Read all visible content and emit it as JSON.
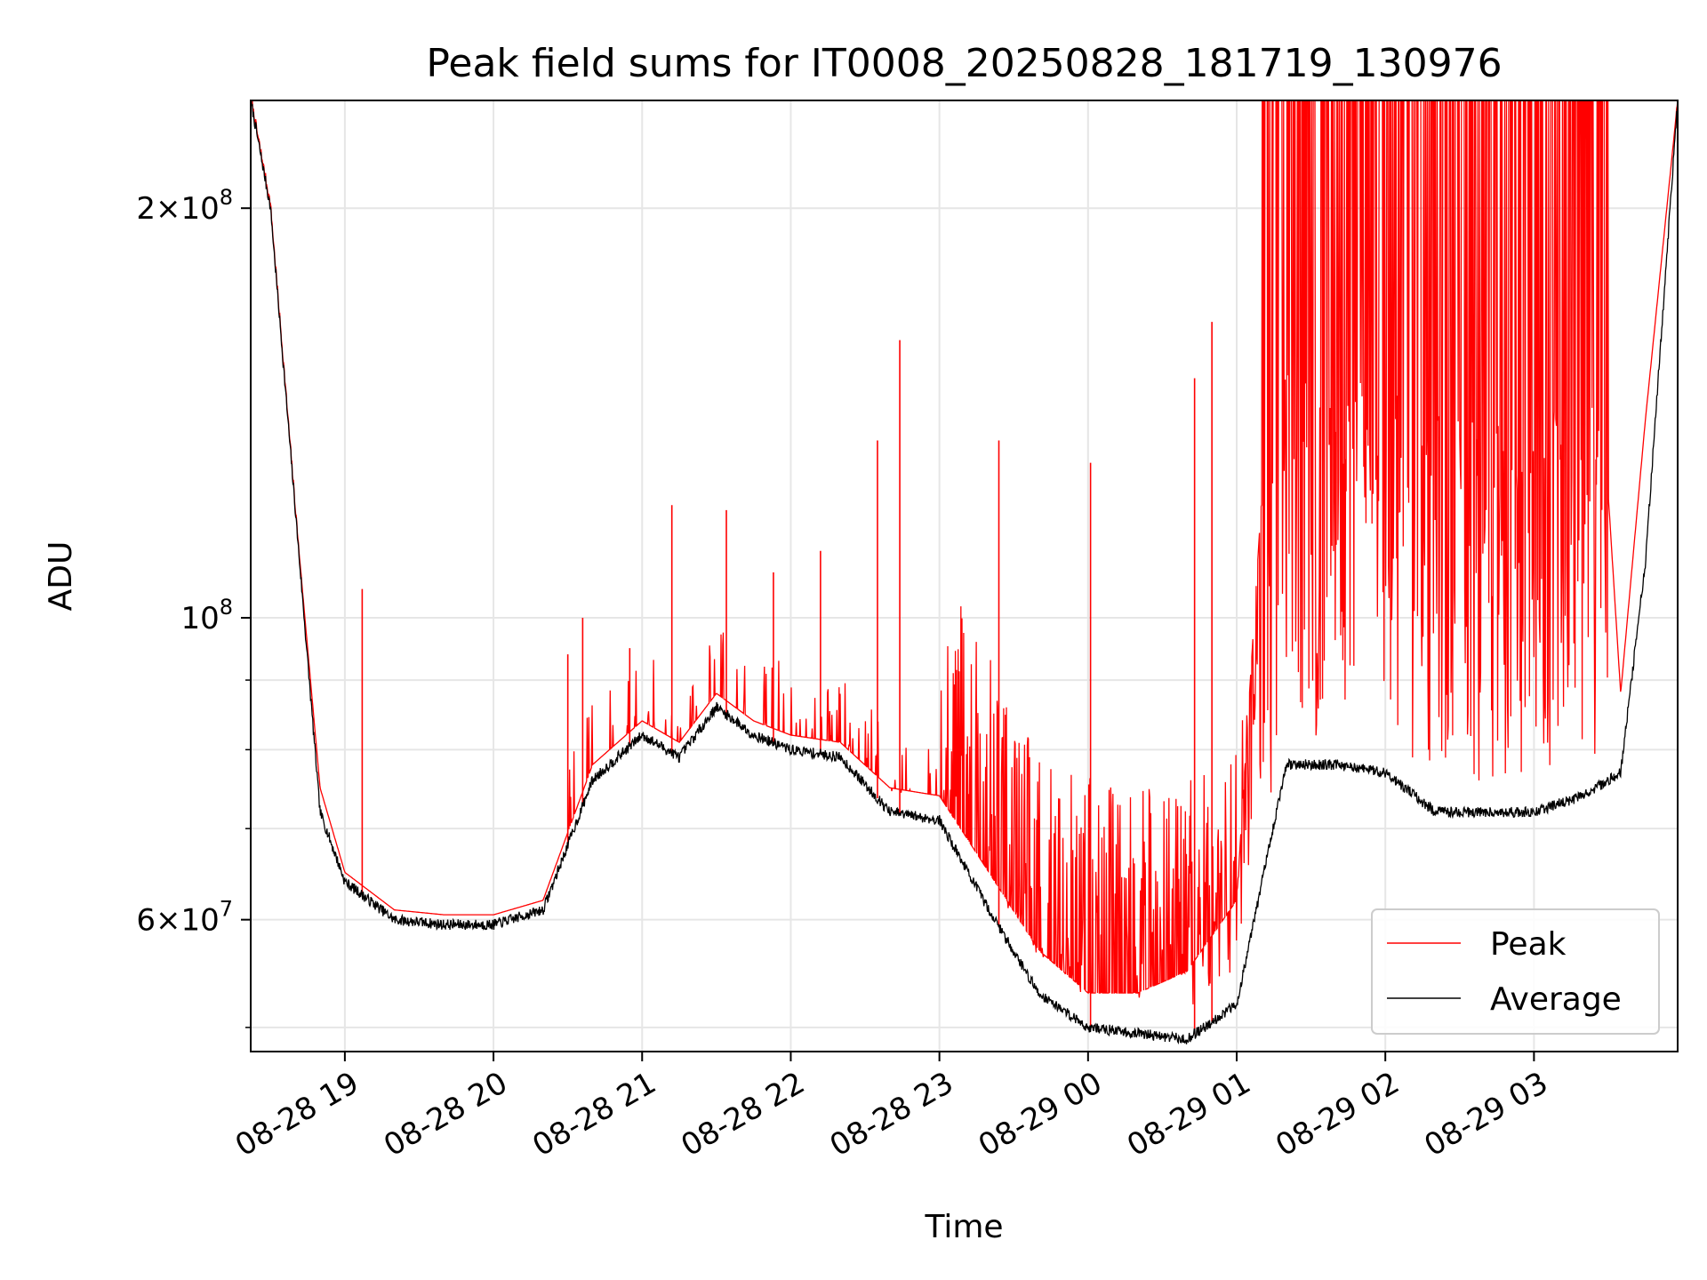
{
  "chart_data": {
    "type": "line",
    "title": "Peak field sums for IT0008_20250828_181719_130976",
    "xlabel": "Time",
    "ylabel": "ADU",
    "x_axis": "time",
    "xlim": [
      "2025-08-28 18:22",
      "2025-08-29 03:58"
    ],
    "ylim": [
      48000000,
      240000000
    ],
    "yscale": "log",
    "grid": true,
    "legend_position": "lower right",
    "x_tick_labels": [
      "08-28 19",
      "08-28 20",
      "08-28 21",
      "08-28 22",
      "08-28 23",
      "08-29 00",
      "08-29 01",
      "08-29 02",
      "08-29 03"
    ],
    "x_ticks": [
      "2025-08-28 19:00",
      "2025-08-28 20:00",
      "2025-08-28 21:00",
      "2025-08-28 22:00",
      "2025-08-28 23:00",
      "2025-08-29 00:00",
      "2025-08-29 01:00",
      "2025-08-29 02:00",
      "2025-08-29 03:00"
    ],
    "y_tick_labels": [
      {
        "value": 60000000,
        "mantissa": "6",
        "exponent": "7"
      },
      {
        "value": 100000000,
        "mantissa": "",
        "exponent": "8"
      },
      {
        "value": 200000000,
        "mantissa": "2",
        "exponent": "8"
      }
    ],
    "y_minor_ticks": [
      50000000,
      70000000,
      80000000,
      90000000
    ],
    "series": [
      {
        "name": "Peak",
        "color": "#ff0000",
        "x": [
          "2025-08-28 18:22",
          "2025-08-28 18:30",
          "2025-08-28 18:40",
          "2025-08-28 18:50",
          "2025-08-28 19:00",
          "2025-08-28 19:20",
          "2025-08-28 19:40",
          "2025-08-28 20:00",
          "2025-08-28 20:20",
          "2025-08-28 20:40",
          "2025-08-28 21:00",
          "2025-08-28 21:15",
          "2025-08-28 21:30",
          "2025-08-28 21:45",
          "2025-08-28 22:00",
          "2025-08-28 22:20",
          "2025-08-28 22:40",
          "2025-08-28 23:00",
          "2025-08-28 23:20",
          "2025-08-28 23:40",
          "2025-08-29 00:00",
          "2025-08-29 00:20",
          "2025-08-29 00:40",
          "2025-08-29 01:00",
          "2025-08-29 01:20",
          "2025-08-29 01:40",
          "2025-08-29 02:00",
          "2025-08-29 02:20",
          "2025-08-29 02:40",
          "2025-08-29 03:00",
          "2025-08-29 03:20",
          "2025-08-29 03:35",
          "2025-08-29 03:45",
          "2025-08-29 03:58"
        ],
        "y": [
          240000000,
          200000000,
          120000000,
          75000000,
          65000000,
          61000000,
          60500000,
          60500000,
          62000000,
          78000000,
          84000000,
          81000000,
          88000000,
          84000000,
          82000000,
          81000000,
          75000000,
          74000000,
          65000000,
          57000000,
          53000000,
          53000000,
          55000000,
          62000000,
          240000000,
          240000000,
          240000000,
          240000000,
          240000000,
          240000000,
          240000000,
          88000000,
          140000000,
          240000000
        ],
        "spikes": [
          {
            "x": "2025-08-28 19:07",
            "y": 105000000
          },
          {
            "x": "2025-08-28 20:30",
            "y": 94000000
          },
          {
            "x": "2025-08-28 20:36",
            "y": 100000000
          },
          {
            "x": "2025-08-28 20:55",
            "y": 95000000
          },
          {
            "x": "2025-08-28 21:12",
            "y": 121000000
          },
          {
            "x": "2025-08-28 21:34",
            "y": 120000000
          },
          {
            "x": "2025-08-28 21:53",
            "y": 108000000
          },
          {
            "x": "2025-08-28 22:12",
            "y": 112000000
          },
          {
            "x": "2025-08-28 22:35",
            "y": 135000000
          },
          {
            "x": "2025-08-28 22:44",
            "y": 160000000
          },
          {
            "x": "2025-08-28 23:24",
            "y": 135000000
          },
          {
            "x": "2025-08-29 00:01",
            "y": 130000000
          },
          {
            "x": "2025-08-29 00:43",
            "y": 150000000
          },
          {
            "x": "2025-08-29 00:50",
            "y": 165000000
          }
        ]
      },
      {
        "name": "Average",
        "color": "#000000",
        "x": [
          "2025-08-28 18:22",
          "2025-08-28 18:30",
          "2025-08-28 18:40",
          "2025-08-28 18:50",
          "2025-08-28 19:00",
          "2025-08-28 19:20",
          "2025-08-28 19:40",
          "2025-08-28 20:00",
          "2025-08-28 20:20",
          "2025-08-28 20:40",
          "2025-08-28 21:00",
          "2025-08-28 21:15",
          "2025-08-28 21:30",
          "2025-08-28 21:45",
          "2025-08-28 22:00",
          "2025-08-28 22:20",
          "2025-08-28 22:40",
          "2025-08-28 23:00",
          "2025-08-28 23:20",
          "2025-08-28 23:40",
          "2025-08-29 00:00",
          "2025-08-29 00:20",
          "2025-08-29 00:40",
          "2025-08-29 01:00",
          "2025-08-29 01:20",
          "2025-08-29 01:40",
          "2025-08-29 02:00",
          "2025-08-29 02:20",
          "2025-08-29 02:40",
          "2025-08-29 03:00",
          "2025-08-29 03:20",
          "2025-08-29 03:35",
          "2025-08-29 03:45",
          "2025-08-29 03:58"
        ],
        "y": [
          240000000,
          200000000,
          120000000,
          72000000,
          64000000,
          60000000,
          59500000,
          59500000,
          61000000,
          76000000,
          82000000,
          79000000,
          86000000,
          82000000,
          80000000,
          79000000,
          72000000,
          71000000,
          61000000,
          53000000,
          50000000,
          49500000,
          49000000,
          52000000,
          78000000,
          78000000,
          77000000,
          72000000,
          72000000,
          72000000,
          74000000,
          77000000,
          110000000,
          240000000
        ]
      }
    ]
  }
}
